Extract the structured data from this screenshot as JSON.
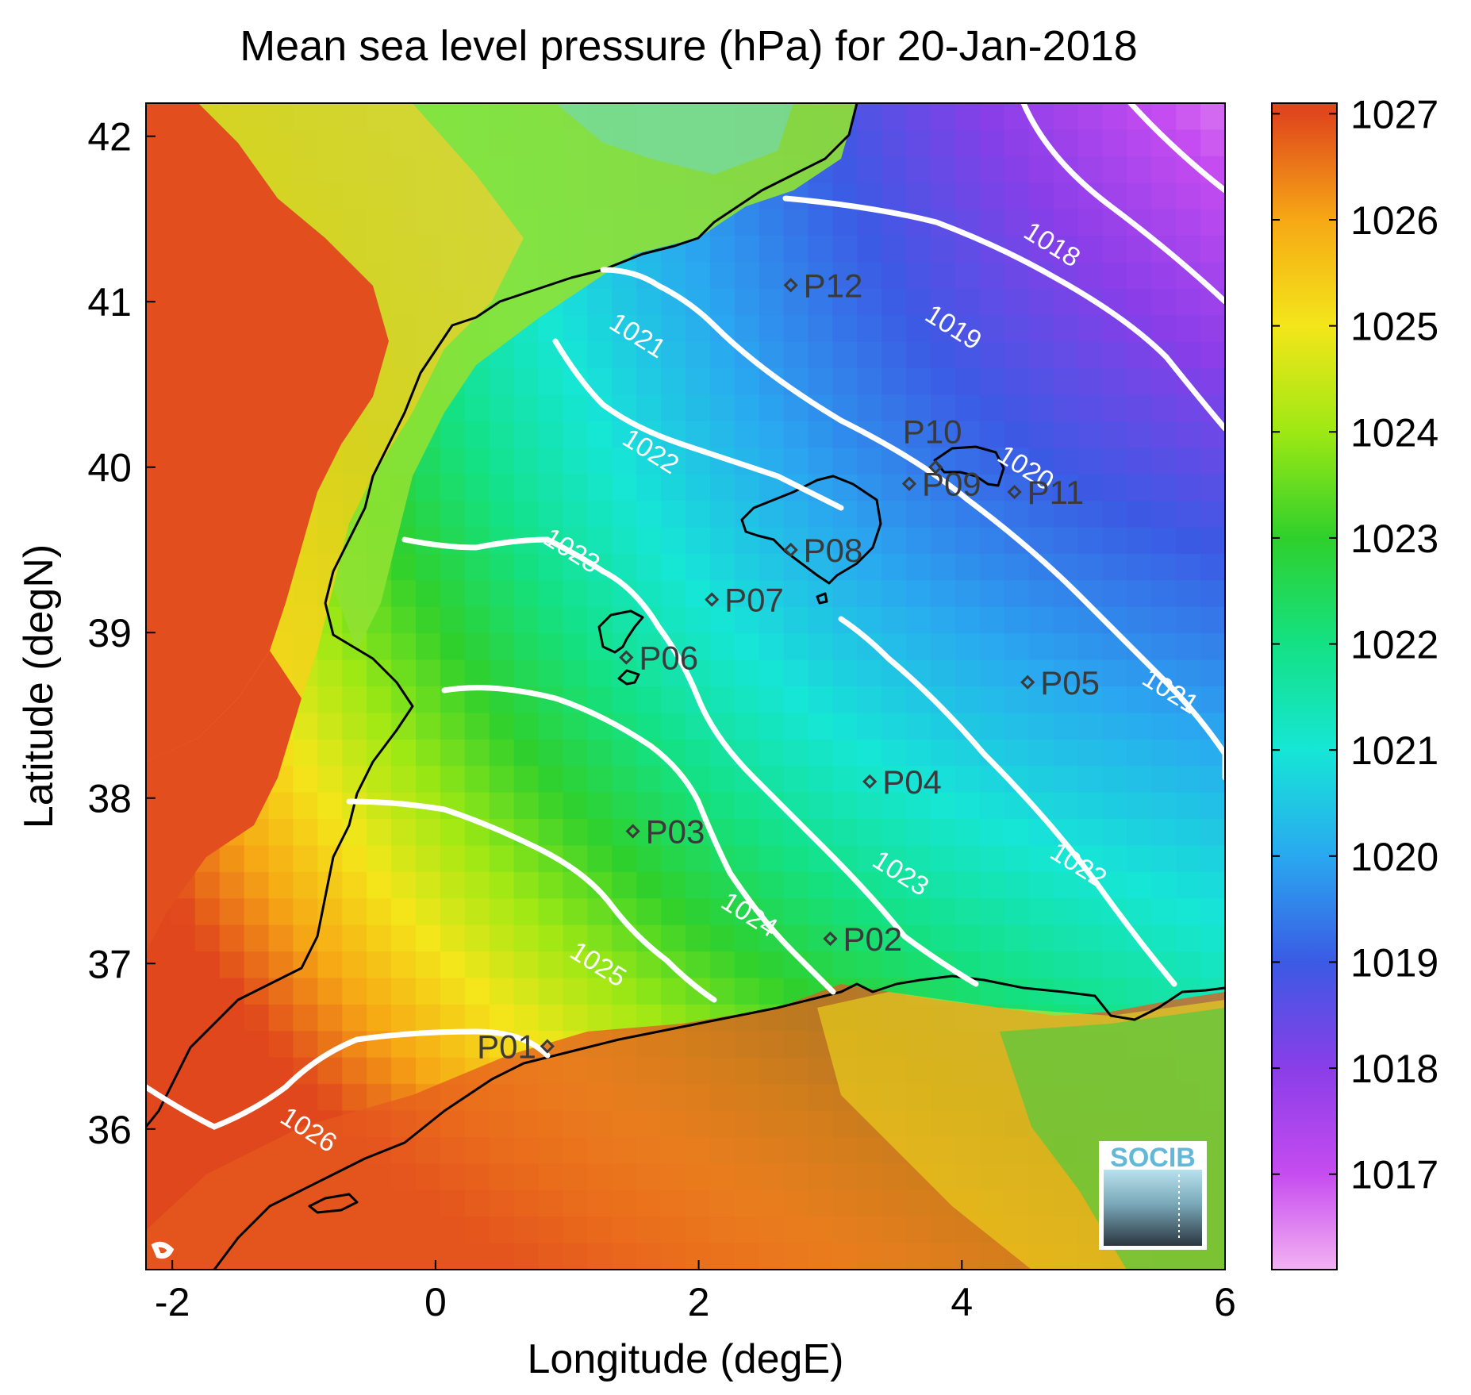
{
  "chart_data": {
    "type": "heatmap",
    "title": "Mean sea level pressure (hPa) for 20-Jan-2018",
    "xlabel": "Longitude (degE)",
    "ylabel": "Latitude (degN)",
    "xlim": [
      -2.2,
      6.0
    ],
    "ylim": [
      35.15,
      42.2
    ],
    "xticks": [
      "-2",
      "0",
      "2",
      "4",
      "6"
    ],
    "yticks": [
      "36",
      "37",
      "38",
      "39",
      "40",
      "41",
      "42"
    ],
    "colorbar": {
      "ticks": [
        "1017",
        "1018",
        "1019",
        "1020",
        "1021",
        "1022",
        "1023",
        "1024",
        "1025",
        "1026",
        "1027"
      ],
      "range": [
        1016.1,
        1027.1
      ],
      "stops": [
        {
          "value": 1016.1,
          "color": "#f3b2f2"
        },
        {
          "value": 1017.0,
          "color": "#c64cf0"
        },
        {
          "value": 1018.0,
          "color": "#8a3ee8"
        },
        {
          "value": 1019.0,
          "color": "#3b5ae4"
        },
        {
          "value": 1020.0,
          "color": "#2aa8f0"
        },
        {
          "value": 1021.0,
          "color": "#16e6d6"
        },
        {
          "value": 1022.0,
          "color": "#14e184"
        },
        {
          "value": 1023.0,
          "color": "#2fd02c"
        },
        {
          "value": 1024.0,
          "color": "#9ee814"
        },
        {
          "value": 1025.0,
          "color": "#f4e61a"
        },
        {
          "value": 1026.0,
          "color": "#f6a815"
        },
        {
          "value": 1027.0,
          "color": "#e0471c"
        }
      ]
    },
    "contour_labels": [
      {
        "text": "1018",
        "lon": 4.65,
        "lat": 41.3
      },
      {
        "text": "1019",
        "lon": 3.9,
        "lat": 40.8
      },
      {
        "text": "1020",
        "lon": 4.45,
        "lat": 39.95
      },
      {
        "text": "1021",
        "lon": 1.5,
        "lat": 40.75
      },
      {
        "text": "1021",
        "lon": 5.55,
        "lat": 38.6
      },
      {
        "text": "1022",
        "lon": 1.6,
        "lat": 40.05
      },
      {
        "text": "1022",
        "lon": 4.85,
        "lat": 37.55
      },
      {
        "text": "1023",
        "lon": 1.0,
        "lat": 39.45
      },
      {
        "text": "1023",
        "lon": 3.5,
        "lat": 37.5
      },
      {
        "text": "1024",
        "lon": 2.35,
        "lat": 37.25
      },
      {
        "text": "1025",
        "lon": 1.2,
        "lat": 36.95
      },
      {
        "text": "1026",
        "lon": -1.0,
        "lat": 35.95
      }
    ],
    "stations": [
      {
        "name": "P01",
        "lon": 0.85,
        "lat": 36.5
      },
      {
        "name": "P02",
        "lon": 3.0,
        "lat": 37.15
      },
      {
        "name": "P03",
        "lon": 1.5,
        "lat": 37.8
      },
      {
        "name": "P04",
        "lon": 3.3,
        "lat": 38.1
      },
      {
        "name": "P05",
        "lon": 4.5,
        "lat": 38.7
      },
      {
        "name": "P06",
        "lon": 1.45,
        "lat": 38.85
      },
      {
        "name": "P07",
        "lon": 2.1,
        "lat": 39.2
      },
      {
        "name": "P08",
        "lon": 2.7,
        "lat": 39.5
      },
      {
        "name": "P09",
        "lon": 3.6,
        "lat": 39.9
      },
      {
        "name": "P10",
        "lon": 3.8,
        "lat": 40.0
      },
      {
        "name": "P11",
        "lon": 4.4,
        "lat": 39.85
      },
      {
        "name": "P12",
        "lon": 2.7,
        "lat": 41.1
      }
    ]
  },
  "logo": {
    "text": "SOCIB",
    "color": "#62b8d6"
  },
  "colors": {
    "coastline": "#000000",
    "contour": "#ffffff",
    "station": "#3a3a3a"
  }
}
